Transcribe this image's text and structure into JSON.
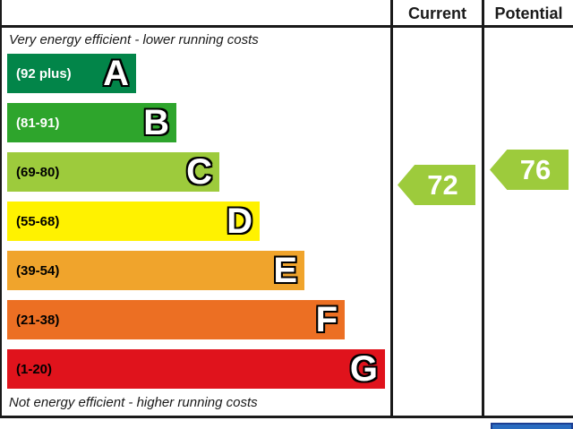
{
  "header": {
    "current_label": "Current",
    "potential_label": "Potential"
  },
  "chart": {
    "top_caption": "Very energy efficient - lower running costs",
    "bottom_caption": "Not energy efficient - higher running costs",
    "bands": [
      {
        "letter": "A",
        "range": "(92 plus)",
        "color": "#028549",
        "label_color": "#ffffff"
      },
      {
        "letter": "B",
        "range": "(81-91)",
        "color": "#2ea52c",
        "label_color": "#ffffff"
      },
      {
        "letter": "C",
        "range": "(69-80)",
        "color": "#9dcb3c",
        "label_color": "#000000"
      },
      {
        "letter": "D",
        "range": "(55-68)",
        "color": "#fff200",
        "label_color": "#000000"
      },
      {
        "letter": "E",
        "range": "(39-54)",
        "color": "#f0a42c",
        "label_color": "#000000"
      },
      {
        "letter": "F",
        "range": "(21-38)",
        "color": "#ec6f23",
        "label_color": "#000000"
      },
      {
        "letter": "G",
        "range": "(1-20)",
        "color": "#e0131c",
        "label_color": "#000000"
      }
    ],
    "current": {
      "value": "72",
      "band": "C",
      "color": "#9dcb3c"
    },
    "potential": {
      "value": "76",
      "band": "C",
      "color": "#9dcb3c"
    }
  },
  "next_section": {
    "partial_blue_bar_color": "#2a6cc0"
  },
  "chart_data": {
    "type": "bar",
    "categories": [
      "A",
      "B",
      "C",
      "D",
      "E",
      "F",
      "G"
    ],
    "band_ranges": [
      "92 plus",
      "81-91",
      "69-80",
      "55-68",
      "39-54",
      "21-38",
      "1-20"
    ],
    "band_colors": [
      "#028549",
      "#2ea52c",
      "#9dcb3c",
      "#fff200",
      "#f0a42c",
      "#ec6f23",
      "#e0131c"
    ],
    "series": [
      {
        "name": "Current",
        "values": [
          72
        ],
        "band": "C"
      },
      {
        "name": "Potential",
        "values": [
          76
        ],
        "band": "C"
      }
    ],
    "title": "",
    "xlabel": "",
    "ylabel": "",
    "annotations": [
      "Very energy efficient - lower running costs",
      "Not energy efficient - higher running costs"
    ],
    "legend_position": "table-columns-right",
    "grid": false,
    "value_range": [
      1,
      100
    ]
  }
}
